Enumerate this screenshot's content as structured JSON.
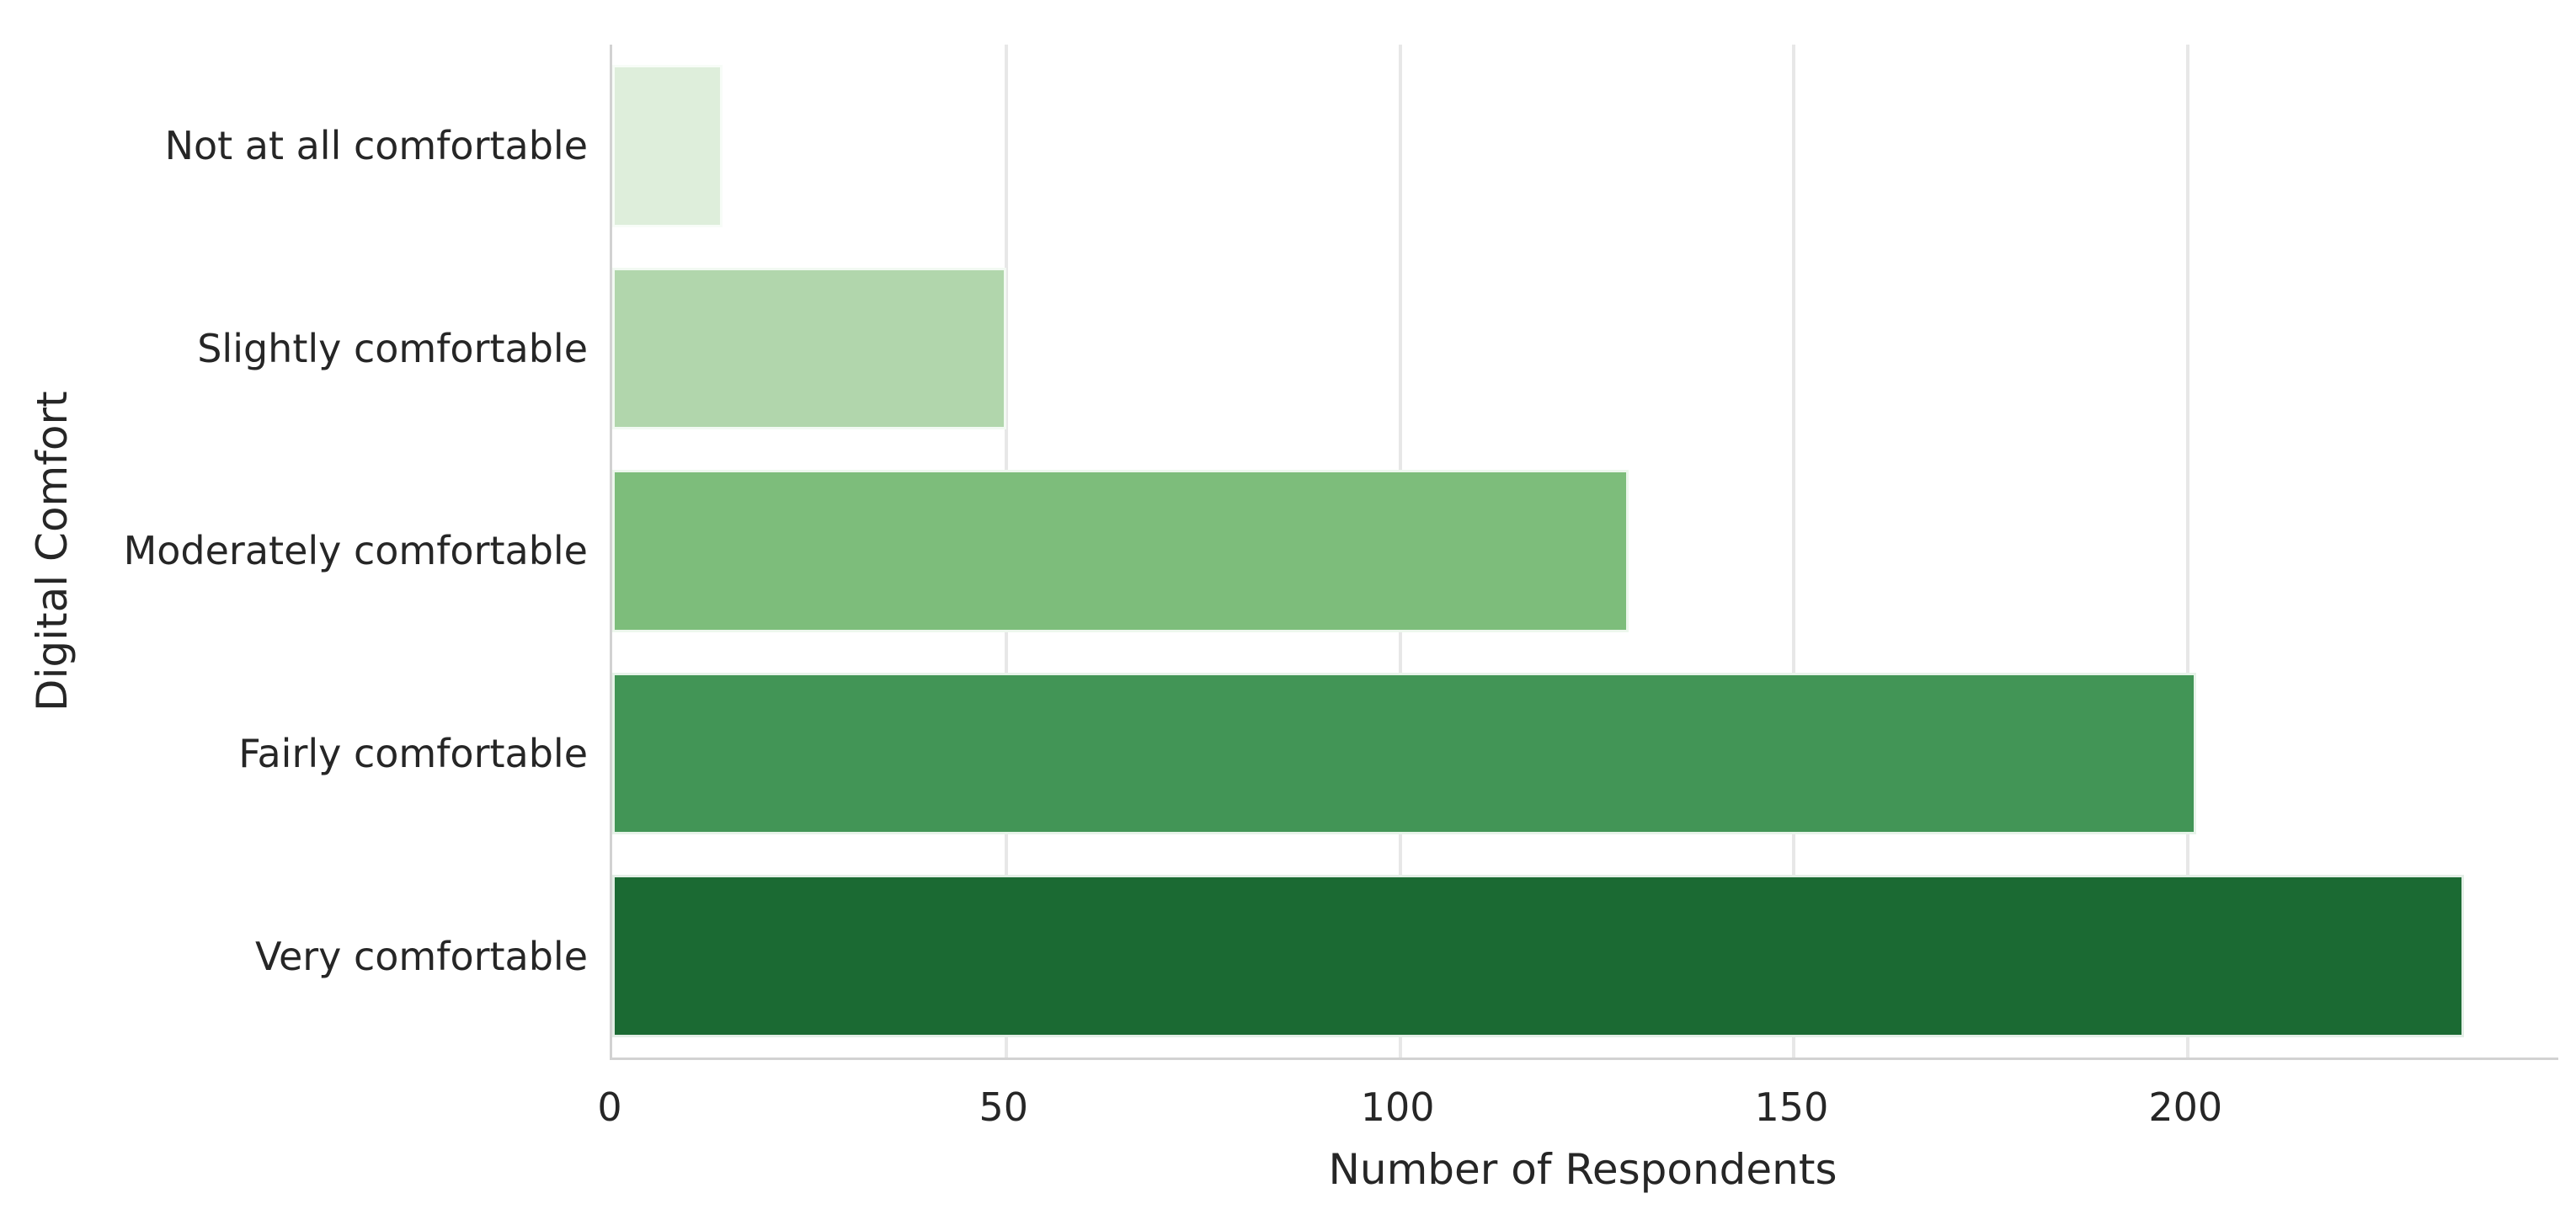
{
  "figure": {
    "background": "#ffffff",
    "text_color": "#262626"
  },
  "chart_data": {
    "type": "bar",
    "orientation": "horizontal",
    "title": "",
    "xlabel": "Number of Respondents",
    "ylabel": "Digital Comfort",
    "categories": [
      "Not at all comfortable",
      "Slightly comfortable",
      "Moderately comfortable",
      "Fairly comfortable",
      "Very comfortable"
    ],
    "values": [
      14,
      50,
      129,
      201,
      235
    ],
    "bar_colors": [
      "#deeedb",
      "#b1d6ac",
      "#7dbd7b",
      "#429556",
      "#1b6a33"
    ],
    "xticks": [
      0,
      50,
      100,
      150,
      200
    ],
    "xlim": [
      0,
      247
    ],
    "grid": "vertical-gridlines-behind-bars",
    "grid_color": "#e7e7e7",
    "spine_color": "#d2d2d2",
    "legend": "none",
    "bar_relative_height": 0.8
  }
}
